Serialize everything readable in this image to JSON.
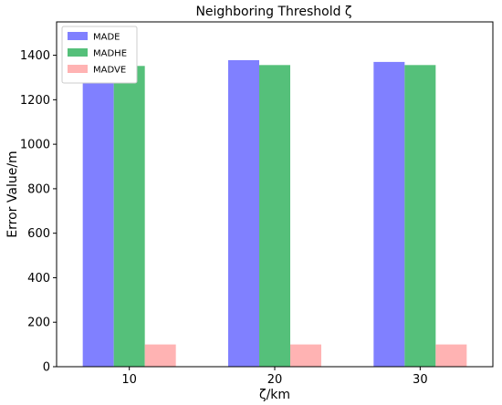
{
  "chart_data": {
    "type": "bar",
    "title": "Neighboring Threshold ζ",
    "xlabel": "ζ/km",
    "ylabel": "Error Value/m",
    "categories": [
      "10",
      "20",
      "30"
    ],
    "ylim": [
      0,
      1550
    ],
    "yticks": [
      0,
      200,
      400,
      600,
      800,
      1000,
      1200,
      1400
    ],
    "grid": false,
    "legend_position": "top-left",
    "series": [
      {
        "name": "MADE",
        "color": "#8080ff",
        "values": [
          1368,
          1378,
          1370
        ]
      },
      {
        "name": "MADHE",
        "color": "#55c07a",
        "values": [
          1352,
          1356,
          1356
        ]
      },
      {
        "name": "MADVE",
        "color": "#ffb3b3",
        "values": [
          100,
          100,
          100
        ]
      }
    ]
  }
}
